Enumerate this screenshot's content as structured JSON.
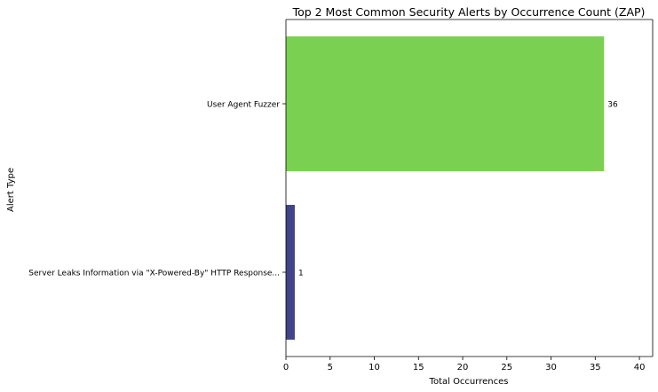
{
  "chart_data": {
    "type": "bar",
    "orientation": "horizontal",
    "title": "Top 2 Most Common Security Alerts by Occurrence Count (ZAP)",
    "xlabel": "Total Occurrences",
    "ylabel": "Alert Type",
    "xlim": [
      0,
      41.5
    ],
    "x_ticks": [
      0,
      5,
      10,
      15,
      20,
      25,
      30,
      35,
      40
    ],
    "grid": false,
    "categories": [
      "User Agent Fuzzer",
      "Server Leaks Information via \"X-Powered-By\" HTTP Response..."
    ],
    "values": [
      36,
      1
    ],
    "colors": [
      "#7ad151",
      "#414487"
    ]
  }
}
